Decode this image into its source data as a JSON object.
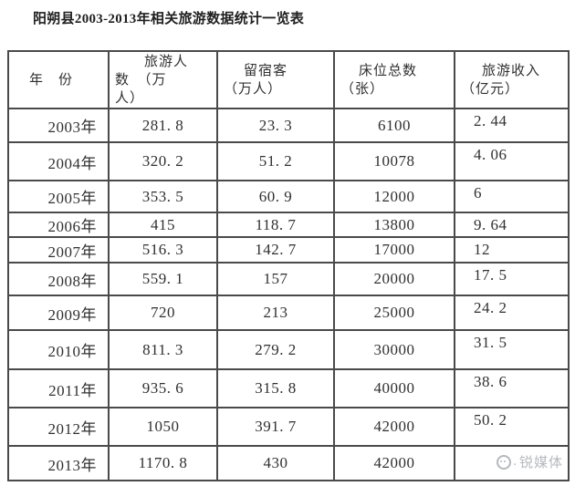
{
  "chart_data": {
    "type": "table",
    "title": "阳朔县2003-2013年相关旅游数据统计一览表",
    "columns": [
      {
        "key": "year",
        "header": "年　份"
      },
      {
        "key": "tourists",
        "header": "旅游人\n数　（万\n人）"
      },
      {
        "key": "overnight",
        "header": "留宿客\n（万人）"
      },
      {
        "key": "beds",
        "header": "床位总数\n（张）"
      },
      {
        "key": "revenue",
        "header": "旅游收入\n（亿元）"
      }
    ],
    "rows": [
      {
        "year": "2003年",
        "tourists": "281. 8",
        "overnight": "23. 3",
        "beds": "6100",
        "revenue": "2. 44"
      },
      {
        "year": "2004年",
        "tourists": "320. 2",
        "overnight": "51. 2",
        "beds": "10078",
        "revenue": "4. 06"
      },
      {
        "year": "2005年",
        "tourists": "353. 5",
        "overnight": "60. 9",
        "beds": "12000",
        "revenue": "6"
      },
      {
        "year": "2006年",
        "tourists": "415",
        "overnight": "118. 7",
        "beds": "13800",
        "revenue": "9. 64"
      },
      {
        "year": "2007年",
        "tourists": "516. 3",
        "overnight": "142. 7",
        "beds": "17000",
        "revenue": "12"
      },
      {
        "year": "2008年",
        "tourists": "559. 1",
        "overnight": "157",
        "beds": "20000",
        "revenue": "17. 5"
      },
      {
        "year": "2009年",
        "tourists": "720",
        "overnight": "213",
        "beds": "25000",
        "revenue": "24. 2"
      },
      {
        "year": "2010年",
        "tourists": "811. 3",
        "overnight": "279. 2",
        "beds": "30000",
        "revenue": "31. 5"
      },
      {
        "year": "2011年",
        "tourists": "935. 6",
        "overnight": "315. 8",
        "beds": "40000",
        "revenue": "38. 6"
      },
      {
        "year": "2012年",
        "tourists": "1050",
        "overnight": "391. 7",
        "beds": "42000",
        "revenue": "50. 2"
      },
      {
        "year": "2013年",
        "tourists": "1170. 8",
        "overnight": "430",
        "beds": "42000",
        "revenue": ""
      }
    ]
  },
  "watermark": {
    "icon": "smiley-circle-logo-icon",
    "separator": ".",
    "text": "锐媒体"
  },
  "colors": {
    "border": "#4a4a4a",
    "text": "#303030",
    "title": "#1f1f1f",
    "watermark": "#b4b9be",
    "background": "#ffffff"
  }
}
